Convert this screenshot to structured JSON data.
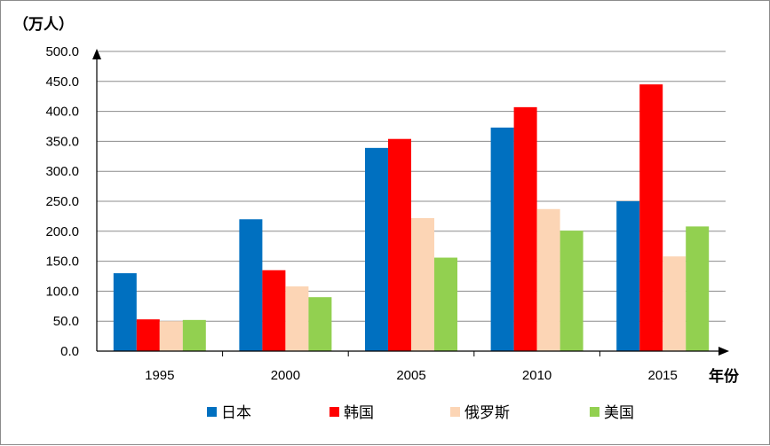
{
  "chart_data": {
    "type": "bar",
    "ylabel": "（万人）",
    "xlabel": "年份",
    "ylim": [
      0,
      500
    ],
    "yticks": [
      "0.0",
      "50.0",
      "100.0",
      "150.0",
      "200.0",
      "250.0",
      "300.0",
      "350.0",
      "400.0",
      "450.0",
      "500.0"
    ],
    "categories": [
      "1995",
      "2000",
      "2005",
      "2010",
      "2015"
    ],
    "series": [
      {
        "name": "日本",
        "color": "#0070c0",
        "values": [
          130,
          220,
          339,
          373,
          250
        ]
      },
      {
        "name": "韩国",
        "color": "#ff0000",
        "values": [
          53,
          135,
          354,
          407,
          445
        ]
      },
      {
        "name": "俄罗斯",
        "color": "#fcd5b5",
        "values": [
          50,
          108,
          222,
          237,
          158
        ]
      },
      {
        "name": "美国",
        "color": "#92d050",
        "values": [
          52,
          90,
          156,
          201,
          208
        ]
      }
    ],
    "grid": true,
    "legend": "bottom"
  }
}
